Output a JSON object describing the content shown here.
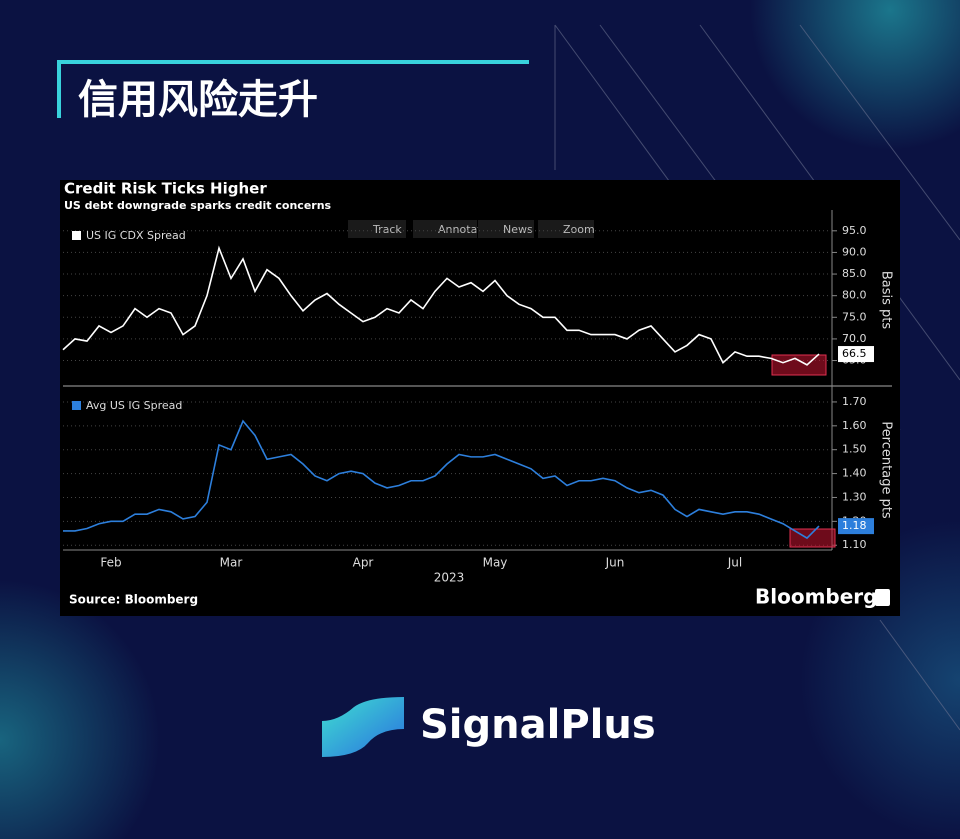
{
  "header": {
    "title": "信用风险走升"
  },
  "chart_data": {
    "type": "line",
    "title": "Credit Risk Ticks Higher",
    "subtitle": "US debt downgrade sparks credit concerns",
    "toolbar": [
      "Track",
      "Annotate",
      "News",
      "Zoom"
    ],
    "categories": [
      null,
      null,
      null,
      null,
      "Feb",
      null,
      null,
      null,
      null,
      null,
      null,
      null,
      null,
      null,
      "Mar",
      null,
      null,
      null,
      null,
      null,
      null,
      null,
      null,
      null,
      null,
      "Apr",
      null,
      null,
      null,
      null,
      null,
      null,
      null,
      null,
      null,
      null,
      "May",
      null,
      null,
      null,
      null,
      null,
      null,
      null,
      null,
      null,
      "Jun",
      null,
      null,
      null,
      null,
      null,
      null,
      null,
      null,
      null,
      "Jul",
      null,
      null,
      null,
      null,
      null,
      null,
      null
    ],
    "x_label": "2023",
    "grid": true,
    "panels": [
      {
        "ylabel": "Basis pts",
        "ylim": [
          60.5,
          97.5
        ],
        "yticks": [
          {
            "value": 65,
            "label": "65.0"
          },
          {
            "value": 70,
            "label": "70.0"
          },
          {
            "value": 75,
            "label": "75.0"
          },
          {
            "value": 80,
            "label": "80.0"
          },
          {
            "value": 85,
            "label": "85.0"
          },
          {
            "value": 90,
            "label": "90.0"
          },
          {
            "value": 95,
            "label": "95.0"
          }
        ],
        "series": [
          {
            "name": "US IG CDX Spread",
            "color": "#ffffff",
            "values": [
              67.5,
              70,
              69.5,
              73,
              71.5,
              73,
              77,
              75,
              77,
              76,
              71,
              73,
              80,
              91,
              84,
              88.5,
              81,
              86,
              84,
              80,
              76.5,
              79,
              80.5,
              78,
              76,
              74,
              75,
              77,
              76,
              79,
              77,
              81,
              84,
              82,
              83,
              81,
              83.5,
              80,
              78,
              77,
              75,
              75,
              72,
              72,
              71,
              71,
              71,
              70,
              72,
              73,
              70,
              67,
              68.5,
              71,
              70,
              64.5,
              67,
              66,
              66,
              65.5,
              64.5,
              65.5,
              64,
              66.5
            ]
          }
        ]
      },
      {
        "ylabel": "Percentage pts",
        "ylim": [
          1.08,
          1.75
        ],
        "yticks": [
          {
            "value": 1.1,
            "label": "1.10"
          },
          {
            "value": 1.2,
            "label": "1.20"
          },
          {
            "value": 1.3,
            "label": "1.30"
          },
          {
            "value": 1.4,
            "label": "1.40"
          },
          {
            "value": 1.5,
            "label": "1.50"
          },
          {
            "value": 1.6,
            "label": "1.60"
          },
          {
            "value": 1.7,
            "label": "1.70"
          }
        ],
        "series": [
          {
            "name": "Avg US IG Spread",
            "color": "#2d7fdc",
            "values": [
              1.16,
              1.16,
              1.17,
              1.19,
              1.2,
              1.2,
              1.23,
              1.23,
              1.25,
              1.24,
              1.21,
              1.22,
              1.28,
              1.52,
              1.5,
              1.62,
              1.56,
              1.46,
              1.47,
              1.48,
              1.44,
              1.39,
              1.37,
              1.4,
              1.41,
              1.4,
              1.36,
              1.34,
              1.35,
              1.37,
              1.37,
              1.39,
              1.44,
              1.48,
              1.47,
              1.47,
              1.48,
              1.46,
              1.44,
              1.42,
              1.38,
              1.39,
              1.35,
              1.37,
              1.37,
              1.38,
              1.37,
              1.34,
              1.32,
              1.33,
              1.31,
              1.25,
              1.22,
              1.25,
              1.24,
              1.23,
              1.24,
              1.24,
              1.23,
              1.21,
              1.19,
              1.16,
              1.13,
              1.18
            ]
          }
        ]
      }
    ],
    "source": "Source: Bloomberg",
    "brand": "Bloomberg"
  },
  "logo": {
    "text": "SignalPlus"
  }
}
